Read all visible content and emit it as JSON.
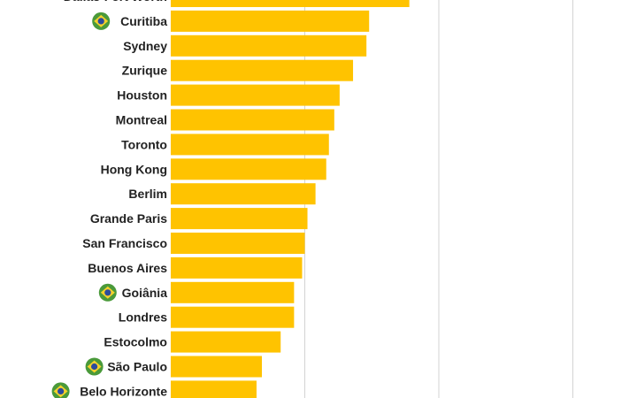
{
  "colors": {
    "bar": "#ffc300",
    "gridline": "#d3d3d3",
    "label": "#222222",
    "flag_green": "#4a9a3a",
    "flag_yellow": "#f4d12c",
    "flag_blue": "#2c4c9c"
  },
  "chart_data": {
    "type": "bar",
    "orientation": "horizontal",
    "title": "",
    "xlabel": "",
    "ylabel": "",
    "grid": true,
    "xlim": [
      0,
      170
    ],
    "gridlines_at": [
      50,
      100,
      150
    ],
    "categories": [
      "Dallas-Fort Worth",
      "Curitiba",
      "Sydney",
      "Zurique",
      "Houston",
      "Montreal",
      "Toronto",
      "Hong Kong",
      "Berlim",
      "Grande Paris",
      "San Francisco",
      "Buenos Aires",
      "Goiânia",
      "Londres",
      "Estocolmo",
      "São Paulo",
      "Belo Horizonte"
    ],
    "values": [
      89,
      74,
      73,
      68,
      63,
      61,
      59,
      58,
      54,
      51,
      50,
      49,
      46,
      46,
      41,
      34,
      32
    ],
    "flagged": [
      false,
      true,
      false,
      false,
      false,
      false,
      false,
      false,
      false,
      false,
      false,
      false,
      true,
      false,
      false,
      true,
      true
    ],
    "flag_icon": "brazil-flag-icon"
  }
}
